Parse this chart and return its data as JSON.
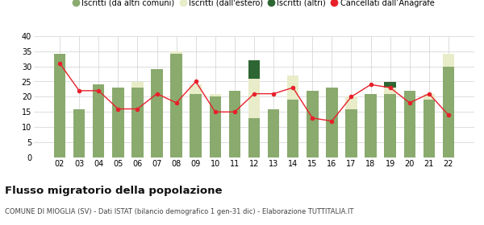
{
  "years": [
    "02",
    "03",
    "04",
    "05",
    "06",
    "07",
    "08",
    "09",
    "10",
    "11",
    "12",
    "13",
    "14",
    "15",
    "16",
    "17",
    "18",
    "19",
    "20",
    "21",
    "22"
  ],
  "iscritti_comuni": [
    34,
    16,
    24,
    23,
    23,
    29,
    34,
    21,
    20,
    22,
    13,
    16,
    19,
    22,
    23,
    16,
    21,
    21,
    22,
    19,
    30
  ],
  "iscritti_estero": [
    0,
    0,
    0,
    0,
    2,
    0,
    1,
    3,
    1,
    0,
    13,
    0,
    8,
    0,
    0,
    4,
    0,
    2,
    0,
    2,
    4
  ],
  "iscritti_altri": [
    0,
    0,
    0,
    0,
    0,
    0,
    0,
    0,
    0,
    0,
    6,
    0,
    0,
    0,
    0,
    0,
    0,
    2,
    0,
    0,
    0
  ],
  "cancellati": [
    31,
    22,
    22,
    16,
    16,
    21,
    18,
    25,
    15,
    15,
    21,
    21,
    23,
    13,
    12,
    20,
    24,
    23,
    18,
    21,
    14
  ],
  "color_comuni": "#8aaa6e",
  "color_estero": "#e8ecc8",
  "color_altri": "#2d6633",
  "color_cancellati": "#e8202a",
  "title": "Flusso migratorio della popolazione",
  "subtitle": "COMUNE DI MIOGLIA (SV) - Dati ISTAT (bilancio demografico 1 gen-31 dic) - Elaborazione TUTTITALIA.IT",
  "legend_labels": [
    "Iscritti (da altri comuni)",
    "Iscritti (dall'estero)",
    "Iscritti (altri)",
    "Cancellati dall’Anagrafe"
  ],
  "ylim": [
    0,
    40
  ],
  "yticks": [
    0,
    5,
    10,
    15,
    20,
    25,
    30,
    35,
    40
  ],
  "background_color": "#ffffff",
  "grid_color": "#d0d0d0"
}
